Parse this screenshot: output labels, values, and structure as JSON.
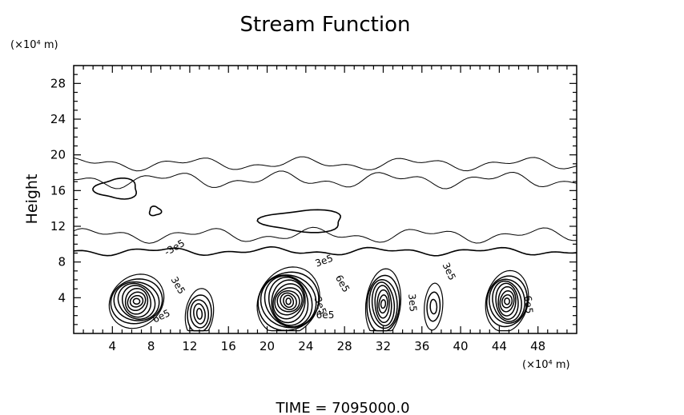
{
  "chart_data": {
    "type": "contour",
    "title": "Stream Function",
    "ylabel": "Height",
    "x_unit_label": "(×10⁴ m)",
    "y_unit_label": "(×10⁴ m)",
    "time_label": "TIME  =  7095000.0",
    "xlim": [
      0,
      52
    ],
    "ylim": [
      0,
      30
    ],
    "x_ticks": [
      4,
      8,
      12,
      16,
      20,
      24,
      28,
      32,
      36,
      40,
      44,
      48
    ],
    "y_ticks": [
      4,
      8,
      12,
      16,
      20,
      24,
      28
    ],
    "contour_labels": [
      {
        "text": "3e5",
        "x": 26.0,
        "y": 7.8,
        "angle": -20
      },
      {
        "text": "6e5",
        "x": 27.5,
        "y": 5.4,
        "angle": 60
      },
      {
        "text": "3e5",
        "x": 10.5,
        "y": 5.2,
        "angle": 60
      },
      {
        "text": "6e5",
        "x": 9.2,
        "y": 1.6,
        "angle": -25
      },
      {
        "text": "3e5",
        "x": 25.2,
        "y": 3.0,
        "angle": 70
      },
      {
        "text": "3e5",
        "x": 38.5,
        "y": 6.8,
        "angle": 65
      },
      {
        "text": "3e5",
        "x": 34.7,
        "y": 3.4,
        "angle": 85
      },
      {
        "text": "6e5",
        "x": 46.7,
        "y": 3.2,
        "angle": 85
      },
      {
        "text": "6e5",
        "x": 26.0,
        "y": 1.7,
        "angle": 0
      },
      {
        "text": "-3e5",
        "x": 10.6,
        "y": 9.3,
        "angle": -30
      }
    ],
    "cells": [
      {
        "cx": 6.5,
        "cy": 3.6,
        "rx": 5.6,
        "ry": 6.0,
        "levels": 9
      },
      {
        "cx": 13.0,
        "cy": 2.2,
        "rx": 2.9,
        "ry": 5.6,
        "levels": 5
      },
      {
        "cx": 22.2,
        "cy": 3.6,
        "rx": 6.4,
        "ry": 7.6,
        "levels": 12
      },
      {
        "cx": 32.0,
        "cy": 3.3,
        "rx": 3.6,
        "ry": 7.8,
        "levels": 8
      },
      {
        "cx": 37.2,
        "cy": 3.0,
        "rx": 1.9,
        "ry": 5.2,
        "levels": 3
      },
      {
        "cx": 44.8,
        "cy": 3.6,
        "rx": 4.4,
        "ry": 6.8,
        "levels": 9
      }
    ],
    "upper_regions": [
      {
        "cx": 4.5,
        "cy": 16.2,
        "rx": 2.2,
        "ry": 1.1
      },
      {
        "cx": 8.4,
        "cy": 13.7,
        "rx": 0.6,
        "ry": 0.5
      },
      {
        "cx": 23.8,
        "cy": 12.6,
        "rx": 4.2,
        "ry": 1.2
      }
    ]
  }
}
